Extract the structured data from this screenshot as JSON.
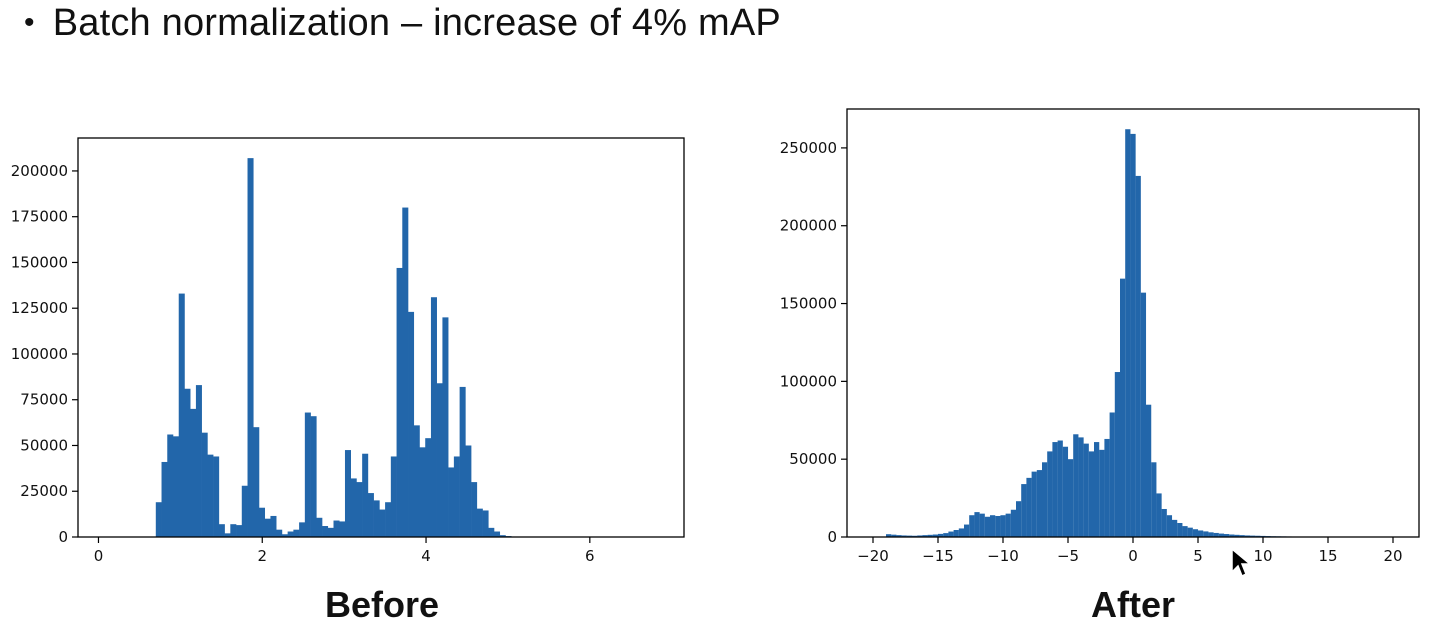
{
  "slide": {
    "bullet": "•",
    "title": "Batch normalization – increase of 4% mAP"
  },
  "colors": {
    "bar": "#2266aa",
    "axis": "#000000",
    "text": "#111111"
  },
  "chart_data": [
    {
      "type": "bar",
      "caption": "Before",
      "xlim": [
        -0.25,
        7.15
      ],
      "ylim": [
        0,
        218000
      ],
      "xticks": [
        0,
        2,
        4,
        6
      ],
      "yticks": [
        0,
        25000,
        50000,
        75000,
        100000,
        125000,
        150000,
        175000,
        200000
      ],
      "grid": false,
      "bin_width": 0.07,
      "x": [
        0.7,
        0.77,
        0.84,
        0.91,
        0.98,
        1.05,
        1.12,
        1.19,
        1.26,
        1.33,
        1.4,
        1.47,
        1.54,
        1.61,
        1.68,
        1.75,
        1.82,
        1.89,
        1.96,
        2.03,
        2.1,
        2.17,
        2.24,
        2.31,
        2.38,
        2.45,
        2.52,
        2.59,
        2.66,
        2.73,
        2.8,
        2.87,
        2.94,
        3.01,
        3.08,
        3.15,
        3.22,
        3.29,
        3.36,
        3.43,
        3.5,
        3.57,
        3.64,
        3.71,
        3.78,
        3.85,
        3.92,
        3.99,
        4.06,
        4.13,
        4.2,
        4.27,
        4.34,
        4.41,
        4.48,
        4.55,
        4.62,
        4.69,
        4.76,
        4.83,
        4.9,
        4.97,
        5.04,
        5.11,
        5.18,
        5.25,
        5.32,
        5.39,
        5.46,
        5.53,
        5.6,
        5.67,
        5.74,
        5.81,
        5.88,
        5.95
      ],
      "values": [
        19000,
        41000,
        56000,
        55000,
        133000,
        81000,
        70000,
        83000,
        57000,
        45000,
        44000,
        7000,
        2000,
        7000,
        6500,
        28000,
        207000,
        60000,
        16000,
        10000,
        11500,
        4000,
        1500,
        3000,
        4000,
        8000,
        68000,
        66000,
        10500,
        6000,
        5000,
        9000,
        8500,
        47500,
        32000,
        30000,
        45500,
        24000,
        20000,
        15000,
        19000,
        44000,
        147000,
        180000,
        123000,
        61000,
        49000,
        54000,
        131000,
        84000,
        120000,
        38000,
        44000,
        82000,
        50000,
        30000,
        15500,
        14500,
        5000,
        3000,
        1000,
        500,
        200,
        0,
        0,
        0,
        0,
        0,
        0,
        0,
        0,
        0,
        0,
        0,
        0,
        0
      ]
    },
    {
      "type": "bar",
      "caption": "After",
      "xlim": [
        -22,
        22
      ],
      "ylim": [
        0,
        275000
      ],
      "xticks": [
        -20,
        -15,
        -10,
        -5,
        0,
        5,
        10,
        15,
        20
      ],
      "yticks": [
        0,
        50000,
        100000,
        150000,
        200000,
        250000
      ],
      "grid": false,
      "bin_width": 0.38,
      "x": [
        -19.0,
        -18.6,
        -18.2,
        -17.8,
        -17.4,
        -17.0,
        -16.6,
        -16.2,
        -15.8,
        -15.4,
        -15.0,
        -14.6,
        -14.2,
        -13.8,
        -13.4,
        -13.0,
        -12.6,
        -12.2,
        -11.8,
        -11.4,
        -11.0,
        -10.6,
        -10.2,
        -9.8,
        -9.4,
        -9.0,
        -8.6,
        -8.2,
        -7.8,
        -7.4,
        -7.0,
        -6.6,
        -6.2,
        -5.8,
        -5.4,
        -5.0,
        -4.6,
        -4.2,
        -3.8,
        -3.4,
        -3.0,
        -2.6,
        -2.2,
        -1.8,
        -1.4,
        -1.0,
        -0.6,
        -0.2,
        0.2,
        0.6,
        1.0,
        1.4,
        1.8,
        2.2,
        2.6,
        3.0,
        3.4,
        3.8,
        4.2,
        4.6,
        5.0,
        5.4,
        5.8,
        6.2,
        6.6,
        7.0,
        7.4,
        7.8,
        8.2,
        8.6,
        9.0,
        9.4,
        9.8,
        10.2,
        10.6,
        11.0,
        11.4,
        11.8,
        12.2,
        12.6,
        13.0,
        13.4,
        13.8,
        14.2,
        14.6,
        15.0,
        15.4,
        15.8,
        16.2,
        16.6,
        17.0
      ],
      "values": [
        1800,
        1500,
        1200,
        1000,
        900,
        800,
        1000,
        1200,
        1400,
        1600,
        2000,
        2500,
        3500,
        4500,
        5500,
        8000,
        14000,
        16000,
        15000,
        13000,
        14000,
        13500,
        14000,
        15000,
        17500,
        23000,
        34000,
        38000,
        42000,
        43000,
        48000,
        55000,
        61000,
        62000,
        58000,
        50000,
        66000,
        64000,
        60000,
        55000,
        61000,
        56000,
        63000,
        80000,
        106000,
        166000,
        262000,
        259000,
        232000,
        157000,
        85000,
        48000,
        28000,
        18000,
        14000,
        11000,
        9000,
        7000,
        6000,
        5000,
        4200,
        3600,
        3000,
        2600,
        2200,
        1900,
        1600,
        1400,
        1200,
        1000,
        900,
        800,
        700,
        600,
        500,
        450,
        400,
        350,
        300,
        250,
        200,
        180,
        150,
        120,
        100,
        80,
        60,
        50,
        40,
        30,
        20
      ]
    }
  ]
}
